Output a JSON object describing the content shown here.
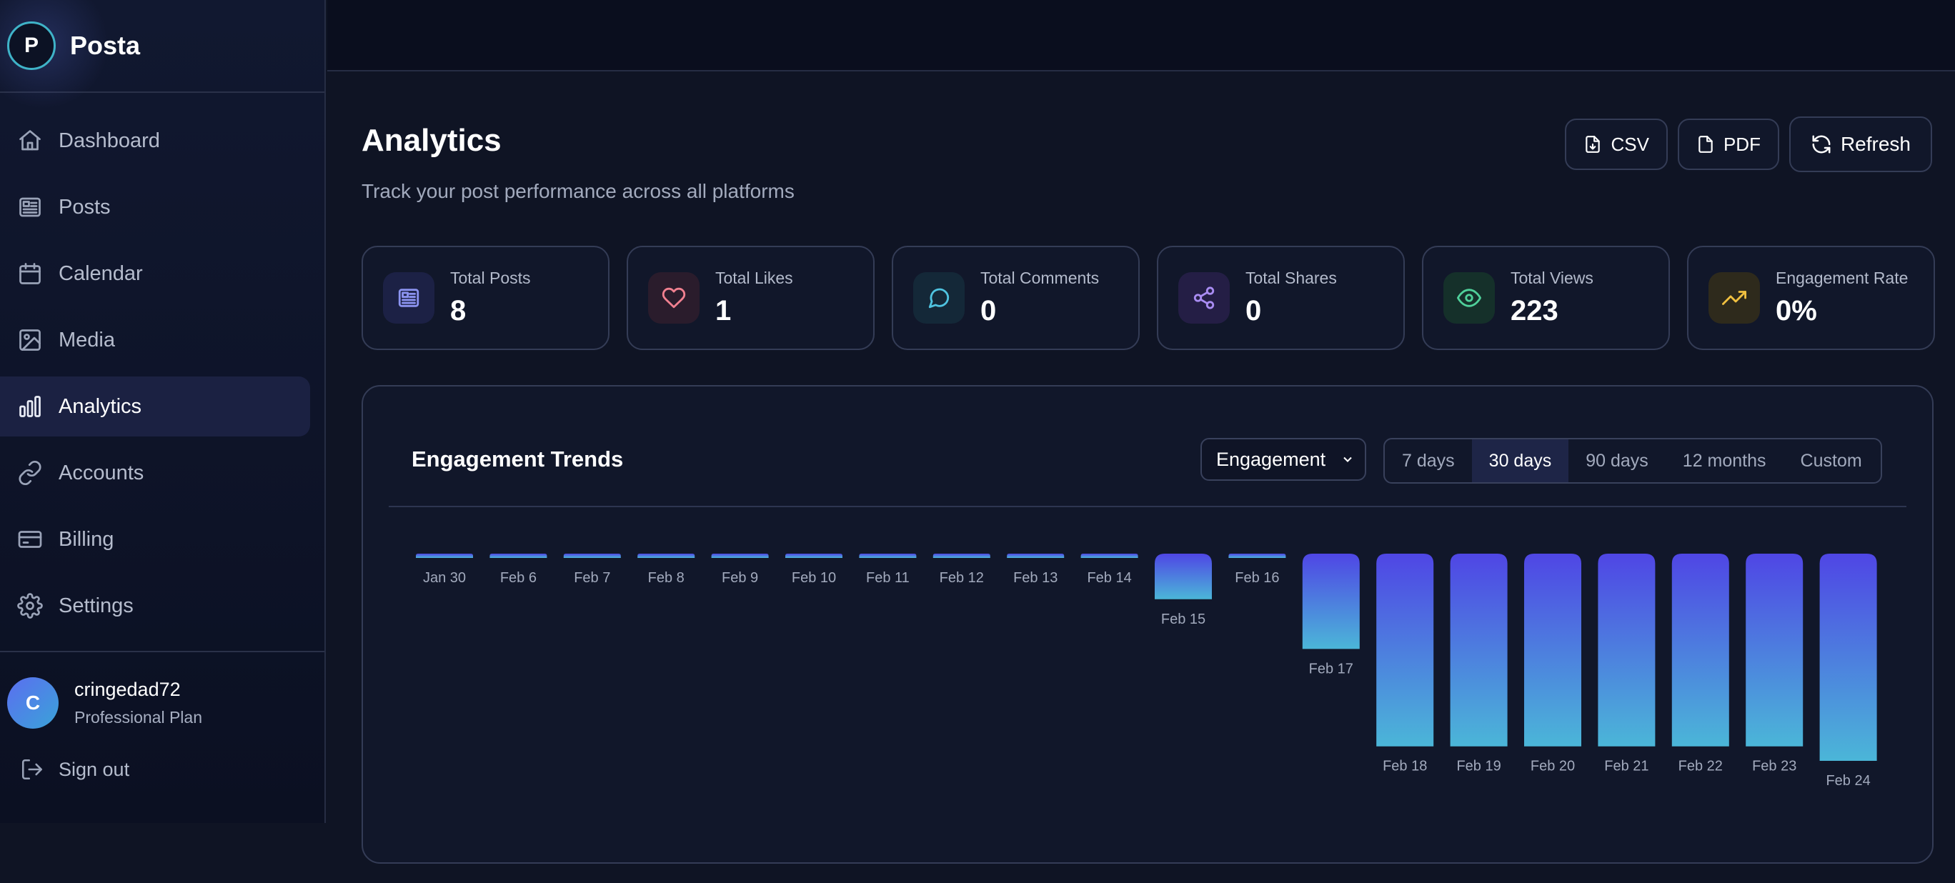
{
  "brand": {
    "initial": "P",
    "name": "Posta"
  },
  "nav": [
    {
      "label": "Dashboard",
      "icon": "home-icon"
    },
    {
      "label": "Posts",
      "icon": "newspaper-icon"
    },
    {
      "label": "Calendar",
      "icon": "calendar-icon"
    },
    {
      "label": "Media",
      "icon": "image-icon"
    },
    {
      "label": "Analytics",
      "icon": "bar-chart-icon",
      "active": true
    },
    {
      "label": "Accounts",
      "icon": "link-icon"
    },
    {
      "label": "Billing",
      "icon": "credit-card-icon"
    },
    {
      "label": "Settings",
      "icon": "gear-icon"
    }
  ],
  "user": {
    "initial": "C",
    "name": "cringedad72",
    "plan": "Professional Plan"
  },
  "signout_label": "Sign out",
  "page": {
    "title": "Analytics",
    "subtitle": "Track your post performance across all platforms"
  },
  "actions": {
    "csv": "CSV",
    "pdf": "PDF",
    "refresh": "Refresh"
  },
  "stats": [
    {
      "label": "Total Posts",
      "value": "8",
      "icon": "newspaper-icon",
      "color": "#8b93f0"
    },
    {
      "label": "Total Likes",
      "value": "1",
      "icon": "heart-icon",
      "color": "#f08090"
    },
    {
      "label": "Total Comments",
      "value": "0",
      "icon": "message-icon",
      "color": "#4fc3e0"
    },
    {
      "label": "Total Shares",
      "value": "0",
      "icon": "share-icon",
      "color": "#a98cf2"
    },
    {
      "label": "Total Views",
      "value": "223",
      "icon": "eye-icon",
      "color": "#4fd09a"
    },
    {
      "label": "Engagement Rate",
      "value": "0%",
      "icon": "trending-up-icon",
      "color": "#f0c040"
    }
  ],
  "chart": {
    "title": "Engagement Trends",
    "metric": "Engagement",
    "ranges": [
      "7 days",
      "30 days",
      "90 days",
      "12 months",
      "Custom"
    ],
    "active_range": "30 days"
  },
  "chart_data": {
    "type": "bar",
    "categories": [
      "Jan 30",
      "Feb 6",
      "Feb 7",
      "Feb 8",
      "Feb 9",
      "Feb 10",
      "Feb 11",
      "Feb 12",
      "Feb 13",
      "Feb 14",
      "Feb 15",
      "Feb 16",
      "Feb 17",
      "Feb 18",
      "Feb 19",
      "Feb 20",
      "Feb 21",
      "Feb 22",
      "Feb 23",
      "Feb 24"
    ],
    "values": [
      0,
      0,
      0,
      0,
      0,
      0,
      0,
      0,
      0,
      0,
      22,
      0,
      46,
      93,
      93,
      93,
      93,
      93,
      93,
      100
    ],
    "colors": {
      "top": "#4f46e5",
      "bottom": "#4bb6d8"
    }
  }
}
